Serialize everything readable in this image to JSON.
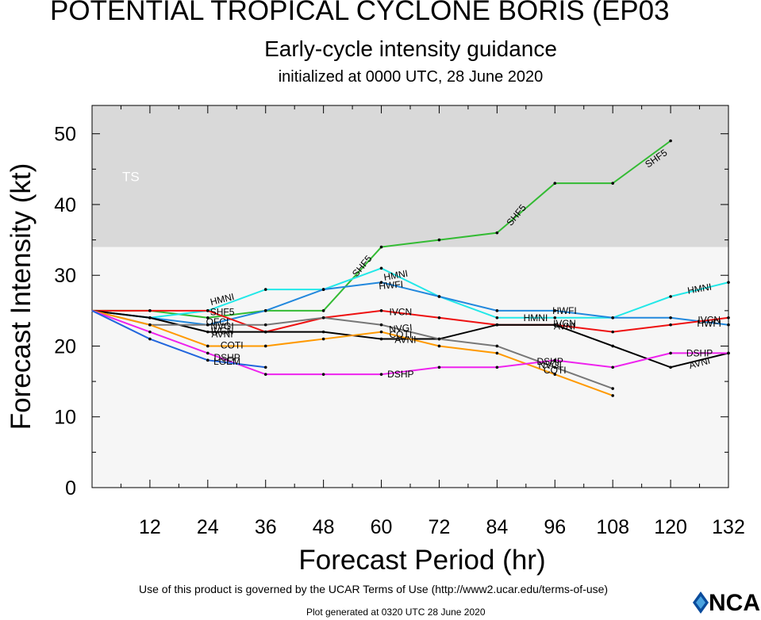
{
  "header": {
    "title": "POTENTIAL TROPICAL CYCLONE BORIS (EP03",
    "subtitle": "Early-cycle intensity guidance",
    "initialized": "initialized at 0000 UTC, 28 June 2020"
  },
  "footer": {
    "terms": "Use of this product is governed by the UCAR Terms of Use (http://www2.ucar.edu/terms-of-use)",
    "generated": "Plot generated at 0320 UTC   28 June 2020",
    "logo_text": "NCAR"
  },
  "chart_data": {
    "type": "line",
    "xlabel": "Forecast Period (hr)",
    "ylabel": "Forecast Intensity (kt)",
    "xlim": [
      0,
      132
    ],
    "ylim": [
      0,
      54
    ],
    "xticks": [
      12,
      24,
      36,
      48,
      60,
      72,
      84,
      96,
      108,
      120,
      132
    ],
    "yticks": [
      0,
      10,
      20,
      30,
      40,
      50
    ],
    "band": {
      "label": "TS",
      "from": 34,
      "to": 54,
      "color": "#d9d9d9"
    },
    "plot_bg": "#f6f6f6",
    "series": [
      {
        "name": "SHF5",
        "color": "#33bb33",
        "x": [
          0,
          12,
          24,
          36,
          48,
          60,
          72,
          84,
          96,
          108,
          120
        ],
        "y": [
          25,
          25,
          24,
          25,
          25,
          34,
          35,
          36,
          43,
          43,
          49
        ]
      },
      {
        "name": "HMNI",
        "color": "#22e8e8",
        "x": [
          0,
          12,
          24,
          36,
          48,
          60,
          72,
          84,
          96,
          108,
          120,
          132
        ],
        "y": [
          25,
          24,
          25,
          28,
          28,
          31,
          27,
          24,
          24,
          24,
          27,
          29
        ]
      },
      {
        "name": "HWFI",
        "color": "#2288dd",
        "x": [
          0,
          12,
          24,
          36,
          48,
          60,
          72,
          84,
          96,
          108,
          120,
          132
        ],
        "y": [
          25,
          24,
          23,
          25,
          28,
          29,
          27,
          25,
          25,
          24,
          24,
          23
        ]
      },
      {
        "name": "IVCN",
        "color": "#ee1111",
        "x": [
          0,
          12,
          24,
          36,
          48,
          60,
          72,
          84,
          96,
          108,
          120,
          132
        ],
        "y": [
          25,
          25,
          25,
          22,
          24,
          25,
          24,
          23,
          23,
          22,
          23,
          24
        ]
      },
      {
        "name": "AVNI",
        "color": "#000000",
        "x": [
          0,
          12,
          24,
          36,
          48,
          60,
          72,
          84,
          96,
          108,
          120,
          132
        ],
        "y": [
          25,
          24,
          22,
          22,
          22,
          21,
          21,
          23,
          23,
          20,
          17,
          19
        ]
      },
      {
        "name": "NVGI",
        "color": "#777777",
        "x": [
          0,
          12,
          24,
          36,
          48,
          60,
          72,
          84,
          96,
          108
        ],
        "y": [
          25,
          23,
          23,
          23,
          24,
          23,
          21,
          20,
          17,
          14
        ]
      },
      {
        "name": "COTI",
        "color": "#ff9900",
        "x": [
          0,
          12,
          24,
          36,
          48,
          60,
          72,
          84,
          96,
          108
        ],
        "y": [
          25,
          23,
          20,
          20,
          21,
          22,
          20,
          19,
          16,
          13
        ]
      },
      {
        "name": "DSHP",
        "color": "#ee22ee",
        "x": [
          0,
          12,
          24,
          36,
          48,
          60,
          72,
          84,
          96,
          108,
          120,
          132
        ],
        "y": [
          25,
          22,
          19,
          16,
          16,
          16,
          17,
          17,
          18,
          17,
          19,
          19
        ]
      },
      {
        "name": "LGEM",
        "color": "#2266dd",
        "x": [
          0,
          12,
          24,
          36
        ],
        "y": [
          25,
          21,
          18,
          17
        ]
      }
    ],
    "curve_labels": [
      {
        "text": "SHF5",
        "x": 27,
        "y": 24.8,
        "angle": 0
      },
      {
        "text": "HMNI",
        "x": 27,
        "y": 26.6,
        "angle": -14
      },
      {
        "text": "OFCI",
        "x": 26,
        "y": 23.4,
        "angle": 0
      },
      {
        "text": "NVGI",
        "x": 27,
        "y": 22.8,
        "angle": 0
      },
      {
        "text": "IVCN",
        "x": 27,
        "y": 22.1,
        "angle": 0
      },
      {
        "text": "AVNI",
        "x": 27,
        "y": 21.7,
        "angle": 0
      },
      {
        "text": "COTI",
        "x": 29,
        "y": 20.1,
        "angle": 0
      },
      {
        "text": "DSHP",
        "x": 28,
        "y": 18.4,
        "angle": 0
      },
      {
        "text": "LGEM",
        "x": 28,
        "y": 17.8,
        "angle": 0
      },
      {
        "text": "SHF5",
        "x": 56,
        "y": 31.3,
        "angle": -50
      },
      {
        "text": "HMNI",
        "x": 63,
        "y": 30.0,
        "angle": -10
      },
      {
        "text": "HWFI",
        "x": 62,
        "y": 28.6,
        "angle": -5
      },
      {
        "text": "IVCN",
        "x": 64,
        "y": 24.8,
        "angle": 0
      },
      {
        "text": "NVGI",
        "x": 64,
        "y": 22.5,
        "angle": -5
      },
      {
        "text": "COTI",
        "x": 64,
        "y": 21.6,
        "angle": 0
      },
      {
        "text": "AVNI",
        "x": 65,
        "y": 20.9,
        "angle": 0
      },
      {
        "text": "DSHP",
        "x": 64,
        "y": 16.0,
        "angle": 0
      },
      {
        "text": "SHF5",
        "x": 88,
        "y": 38.5,
        "angle": -50
      },
      {
        "text": "HWFI",
        "x": 98,
        "y": 25.0,
        "angle": 0
      },
      {
        "text": "HMNI",
        "x": 92,
        "y": 24.0,
        "angle": 0
      },
      {
        "text": "IVCN",
        "x": 98,
        "y": 23.2,
        "angle": 0
      },
      {
        "text": "AVNI",
        "x": 98,
        "y": 22.8,
        "angle": 0
      },
      {
        "text": "DSHP",
        "x": 95,
        "y": 17.8,
        "angle": 0
      },
      {
        "text": "NVGI",
        "x": 95,
        "y": 17.3,
        "angle": 0
      },
      {
        "text": "COTI",
        "x": 96,
        "y": 16.6,
        "angle": 0
      },
      {
        "text": "SHF5",
        "x": 117,
        "y": 46.5,
        "angle": -35
      },
      {
        "text": "HMNI",
        "x": 126,
        "y": 28.1,
        "angle": -10
      },
      {
        "text": "IVCN",
        "x": 128,
        "y": 23.7,
        "angle": 0
      },
      {
        "text": "HWFI",
        "x": 128,
        "y": 23.2,
        "angle": 0
      },
      {
        "text": "DSHP",
        "x": 126,
        "y": 19.0,
        "angle": 0
      },
      {
        "text": "AVNI",
        "x": 126,
        "y": 17.6,
        "angle": -15
      }
    ]
  }
}
